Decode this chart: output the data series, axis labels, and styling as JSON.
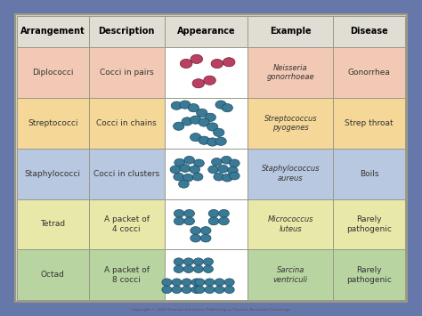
{
  "headers": [
    "Arrangement",
    "Description",
    "Appearance",
    "Example",
    "Disease"
  ],
  "rows": [
    {
      "arrangement": "Diplococci",
      "description": "Cocci in pairs",
      "example": "Neisseria\ngonorrhoeae",
      "disease": "Gonorrhea",
      "row_color": "#f2c9b4",
      "bacteria_color": "#b84060",
      "type": "diplococci"
    },
    {
      "arrangement": "Streptococci",
      "description": "Cocci in chains",
      "example": "Streptococcus\npyogenes",
      "disease": "Strep throat",
      "row_color": "#f5d898",
      "bacteria_color": "#3a7a96",
      "type": "streptococci"
    },
    {
      "arrangement": "Staphylococci",
      "description": "Cocci in clusters",
      "example": "Staphylococcus\naureus",
      "disease": "Boils",
      "row_color": "#b8c8e0",
      "bacteria_color": "#3a7a96",
      "type": "staphylococci"
    },
    {
      "arrangement": "Tetrad",
      "description": "A packet of\n4 cocci",
      "example": "Micrococcus\nluteus",
      "disease": "Rarely\npathogenic",
      "row_color": "#e8e8a8",
      "bacteria_color": "#3a7a96",
      "type": "tetrad"
    },
    {
      "arrangement": "Octad",
      "description": "A packet of\n8 cocci",
      "example": "Sarcina\nventriculi",
      "disease": "Rarely\npathogenic",
      "row_color": "#b8d4a0",
      "bacteria_color": "#3a7a96",
      "type": "octad"
    }
  ],
  "header_color": "#e0ddd5",
  "appearance_col_color": "#ffffff",
  "border_color": "#999988",
  "text_color": "#333333",
  "header_text_color": "#000000",
  "title_fontsize": 7,
  "cell_fontsize": 6.5,
  "example_fontsize": 6,
  "fig_bg_color": "#6677aa"
}
